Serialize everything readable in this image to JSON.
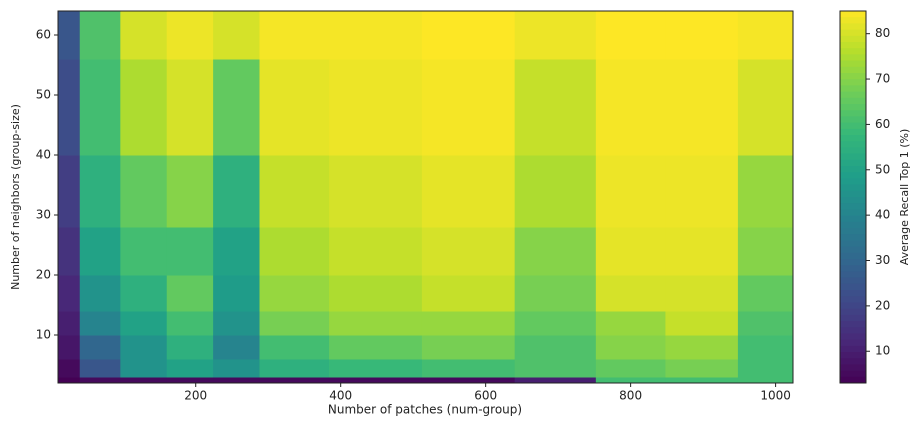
{
  "chart_data": {
    "type": "heatmap",
    "x_label": "Number of patches (num-group)",
    "y_label": "Number of neighbors (group-size)",
    "colorbar_label": "Average Recall Top 1 (%)",
    "colormap": "viridis",
    "x": [
      16,
      64,
      128,
      192,
      256,
      320,
      448,
      576,
      704,
      800,
      896,
      1000
    ],
    "y": [
      2,
      4,
      8,
      12,
      16,
      24,
      32,
      48,
      64
    ],
    "z": [
      [
        3,
        5,
        5,
        5,
        5,
        5,
        5,
        5,
        10,
        60,
        60,
        60
      ],
      [
        5,
        25,
        45,
        50,
        45,
        55,
        58,
        60,
        62,
        65,
        68,
        60
      ],
      [
        8,
        30,
        45,
        55,
        40,
        60,
        65,
        68,
        62,
        70,
        72,
        60
      ],
      [
        10,
        40,
        50,
        60,
        45,
        68,
        72,
        72,
        65,
        72,
        78,
        62
      ],
      [
        12,
        45,
        55,
        65,
        48,
        72,
        75,
        78,
        68,
        80,
        80,
        65
      ],
      [
        15,
        50,
        60,
        60,
        50,
        75,
        78,
        80,
        70,
        82,
        82,
        70
      ],
      [
        18,
        55,
        65,
        70,
        55,
        78,
        80,
        82,
        75,
        83,
        83,
        72
      ],
      [
        22,
        60,
        75,
        80,
        65,
        82,
        83,
        84,
        78,
        84,
        84,
        80
      ],
      [
        25,
        62,
        80,
        83,
        80,
        84,
        84,
        85,
        83,
        85,
        85,
        84
      ]
    ],
    "xlim": [
      10,
      1024
    ],
    "ylim": [
      2,
      64
    ],
    "clim": [
      3,
      85
    ],
    "xticks": [
      200,
      400,
      600,
      800,
      1000
    ],
    "yticks": [
      10,
      20,
      30,
      40,
      50,
      60
    ],
    "cticks": [
      10,
      20,
      30,
      40,
      50,
      60,
      70,
      80
    ]
  }
}
